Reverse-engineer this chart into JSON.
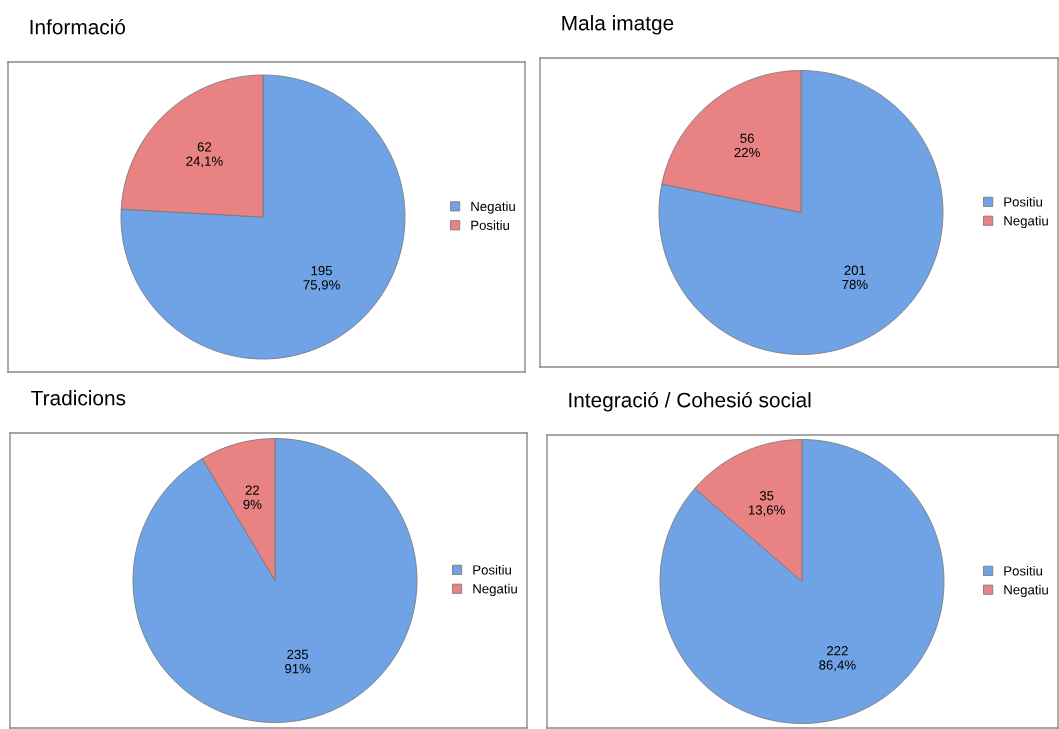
{
  "chart_data": [
    {
      "type": "pie",
      "title": "Informació",
      "categories": [
        "Negatiu",
        "Positiu"
      ],
      "values": [
        195,
        62
      ],
      "colors": [
        "#6fa3e6",
        "#e98383"
      ],
      "value_labels": [
        "195\n75,9%",
        "62\n24,1%"
      ],
      "legend": "right"
    },
    {
      "type": "pie",
      "title": "Mala imatge",
      "categories": [
        "Positiu",
        "Negatiu"
      ],
      "values": [
        201,
        56
      ],
      "colors": [
        "#6fa3e6",
        "#e98383"
      ],
      "value_labels": [
        "201\n78%",
        "56\n22%"
      ],
      "legend": "right"
    },
    {
      "type": "pie",
      "title": "Tradicions",
      "categories": [
        "Positiu",
        "Negatiu"
      ],
      "values": [
        235,
        22
      ],
      "colors": [
        "#6fa3e6",
        "#e98383"
      ],
      "value_labels": [
        "235\n91%",
        "22\n9%"
      ],
      "legend": "right"
    },
    {
      "type": "pie",
      "title": "Integració / Cohesió social",
      "categories": [
        "Positiu",
        "Negatiu"
      ],
      "values": [
        222,
        35
      ],
      "colors": [
        "#6fa3e6",
        "#e98383"
      ],
      "value_labels": [
        "222\n86,4%",
        "35\n13,6%"
      ],
      "legend": "right"
    }
  ]
}
